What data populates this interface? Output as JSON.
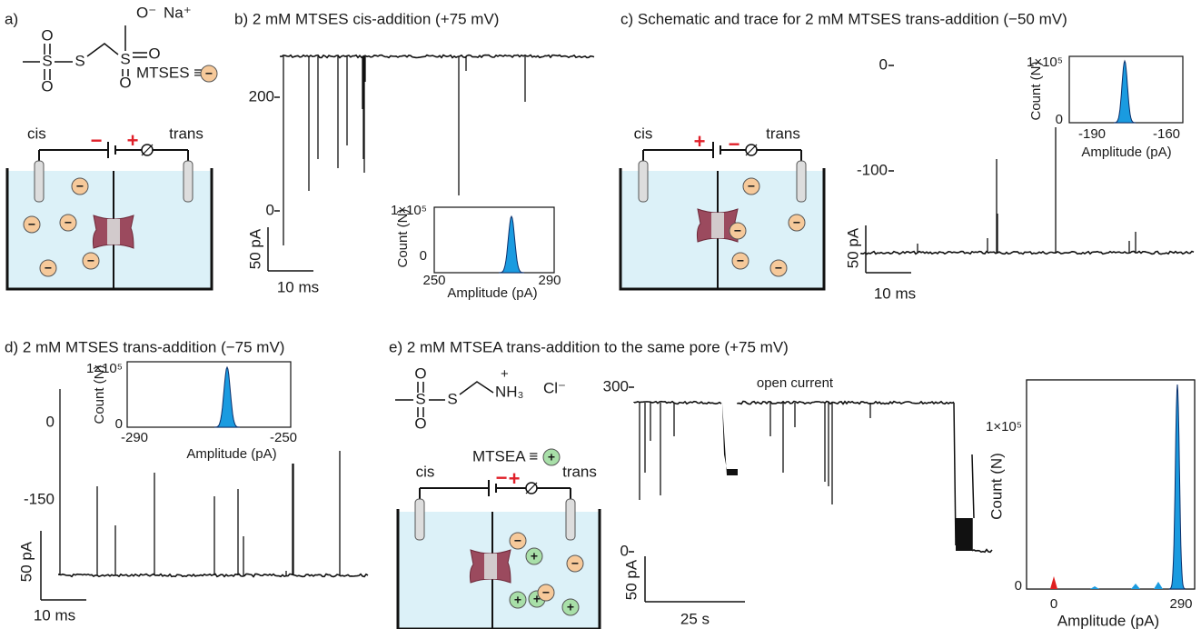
{
  "a": {
    "label": "a)",
    "anion": "O⁻",
    "cation": "Na⁺",
    "atoms": [
      "O",
      "S",
      "O",
      "S",
      "S",
      "O",
      "O"
    ],
    "legend": "MTSES ≡",
    "ion": "−",
    "cis": "cis",
    "trans": "trans",
    "minus": "−",
    "plus": "+"
  },
  "b": {
    "title": "b) 2 mM MTSES cis-addition (+75 mV)",
    "yticks": [
      "200",
      "0"
    ],
    "scale_y": "50 pA",
    "scale_x": "10 ms",
    "inset": {
      "yticks": [
        "1×10⁵",
        "0"
      ],
      "xticks": [
        "250",
        "290"
      ],
      "ylabel": "Count (N)",
      "xlabel": "Amplitude (pA)"
    }
  },
  "c": {
    "title": "c) Schematic and trace for 2 mM MTSES trans-addition (−50 mV)",
    "cis": "cis",
    "trans": "trans",
    "plus": "+",
    "minus": "−",
    "yticks": [
      "0",
      "-100"
    ],
    "scale_y": "50 pA",
    "scale_x": "10 ms",
    "inset": {
      "yticks": [
        "1×10⁵",
        "0"
      ],
      "xticks": [
        "-190",
        "-160"
      ],
      "ylabel": "Count (N)",
      "xlabel": "Amplitude (pA)"
    }
  },
  "d": {
    "title": "d) 2 mM MTSES trans-addition (−75 mV)",
    "yticks": [
      "0",
      "-150"
    ],
    "scale_y": "50 pA",
    "scale_x": "10 ms",
    "inset": {
      "yticks": [
        "1×10⁵",
        "0"
      ],
      "xticks": [
        "-290",
        "-250"
      ],
      "ylabel": "Count (N)",
      "xlabel": "Amplitude (pA)"
    }
  },
  "e": {
    "title": "e) 2 mM MTSEA trans-addition to the same pore  (+75 mV)",
    "atoms": [
      "O",
      "S",
      "O",
      "S",
      "NH₃",
      "+",
      "Cl⁻"
    ],
    "legend": "MTSEA ≡",
    "ion_pos": "+",
    "ion_neg": "−",
    "cis": "cis",
    "trans": "trans",
    "minus": "−",
    "plus": "+",
    "annotation": "open current",
    "yticks": [
      "300",
      "0"
    ],
    "scale_y": "50 pA",
    "scale_x": "25 s",
    "hist": {
      "yticks": [
        "1×10⁵",
        "0"
      ],
      "xticks": [
        "0",
        "290"
      ],
      "ylabel": "Count (N)",
      "xlabel": "Amplitude (pA)"
    }
  }
}
